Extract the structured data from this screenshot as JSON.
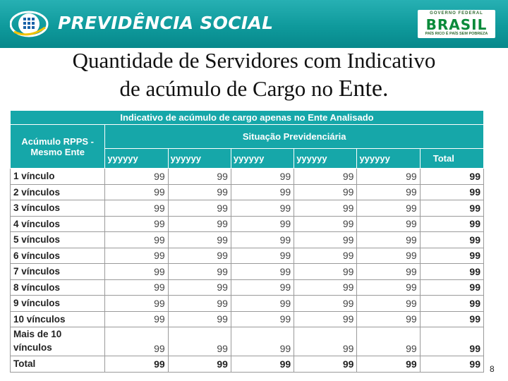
{
  "header": {
    "brand": "PREVIDÊNCIA SOCIAL",
    "logo_icon": "previdencia-globe-icon",
    "gov_top": "GOVERNO FEDERAL",
    "gov_word": "BRASIL",
    "gov_bottom": "PAÍS RICO É PAÍS SEM POBREZA"
  },
  "title": {
    "line1": "Quantidade de Servidores com Indicativo",
    "line2": "de acúmulo de Cargo no",
    "line2_big": "Ente."
  },
  "table": {
    "banner": "Indicativo de acúmulo de cargo apenas no Ente Analisado",
    "row_header": "Acúmulo RPPS - Mesmo Ente",
    "group_header": "Situação Previdenciária",
    "columns": [
      "yyyyyy",
      "yyyyyy",
      "yyyyyy",
      "yyyyyy",
      "yyyyyy",
      "Total"
    ],
    "rows": [
      {
        "label": "1 vínculo",
        "values": [
          "99",
          "99",
          "99",
          "99",
          "99",
          "99"
        ]
      },
      {
        "label": "2 vínculos",
        "values": [
          "99",
          "99",
          "99",
          "99",
          "99",
          "99"
        ]
      },
      {
        "label": "3 vínculos",
        "values": [
          "99",
          "99",
          "99",
          "99",
          "99",
          "99"
        ]
      },
      {
        "label": "4 vínculos",
        "values": [
          "99",
          "99",
          "99",
          "99",
          "99",
          "99"
        ]
      },
      {
        "label": "5 vínculos",
        "values": [
          "99",
          "99",
          "99",
          "99",
          "99",
          "99"
        ]
      },
      {
        "label": "6 vínculos",
        "values": [
          "99",
          "99",
          "99",
          "99",
          "99",
          "99"
        ]
      },
      {
        "label": "7 vínculos",
        "values": [
          "99",
          "99",
          "99",
          "99",
          "99",
          "99"
        ]
      },
      {
        "label": "8  vínculos",
        "values": [
          "99",
          "99",
          "99",
          "99",
          "99",
          "99"
        ]
      },
      {
        "label": "9 vínculos",
        "values": [
          "99",
          "99",
          "99",
          "99",
          "99",
          "99"
        ]
      },
      {
        "label": "10 vínculos",
        "values": [
          "99",
          "99",
          "99",
          "99",
          "99",
          "99"
        ]
      },
      {
        "label": "Mais de 10 vínculos",
        "values": [
          "99",
          "99",
          "99",
          "99",
          "99",
          "99"
        ]
      },
      {
        "label": "Total",
        "values": [
          "99",
          "99",
          "99",
          "99",
          "99",
          "99"
        ]
      }
    ]
  },
  "page_number": "8",
  "colors": {
    "header": "#0f9a9c",
    "table_header": "#16a7a9"
  }
}
